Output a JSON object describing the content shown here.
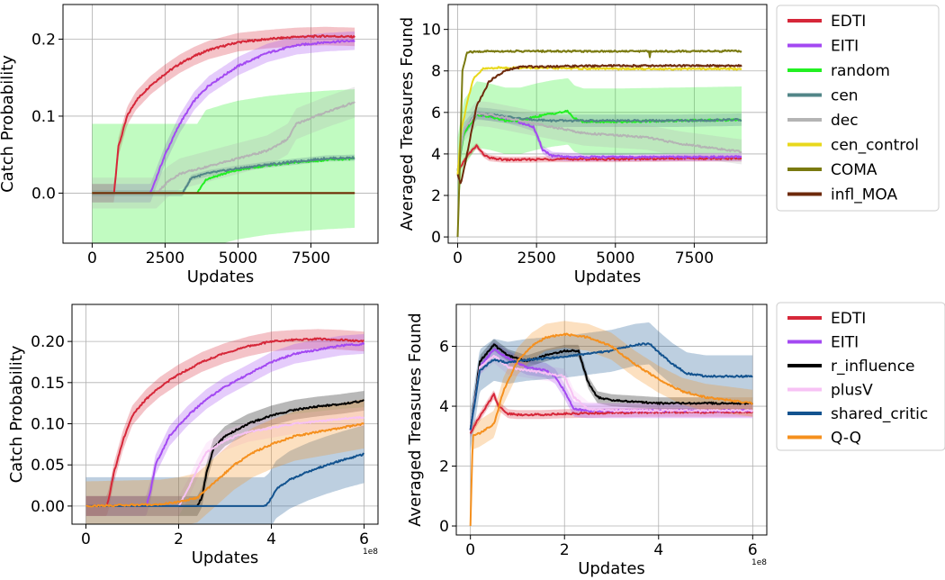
{
  "chart_data": [
    {
      "id": "top-left",
      "type": "line",
      "xlabel": "Updates",
      "ylabel": "Catch Probability",
      "xlim": [
        -1000,
        9800
      ],
      "ylim": [
        -0.065,
        0.245
      ],
      "xticks": [
        0,
        2500,
        5000,
        7500
      ],
      "xtick_labels": [
        "0",
        "2500",
        "5000",
        "7500"
      ],
      "yticks": [
        0.0,
        0.1,
        0.2
      ],
      "ytick_labels": [
        "0.0",
        "0.1",
        "0.2"
      ],
      "grid": true,
      "series": [
        {
          "name": "EDTI",
          "color": "#d62739",
          "x": [
            0,
            750,
            800,
            900,
            1200,
            1500,
            2000,
            2500,
            3000,
            3500,
            4000,
            5000,
            6000,
            7000,
            8000,
            9000
          ],
          "y": [
            0,
            0,
            0.02,
            0.06,
            0.1,
            0.12,
            0.14,
            0.155,
            0.168,
            0.178,
            0.186,
            0.196,
            0.2,
            0.203,
            0.204,
            0.203
          ],
          "band": 0.012
        },
        {
          "name": "EITI",
          "color": "#a349f2",
          "x": [
            0,
            2000,
            2200,
            2500,
            3000,
            3500,
            4000,
            5000,
            6000,
            7000,
            8000,
            9000
          ],
          "y": [
            0,
            0,
            0.02,
            0.05,
            0.09,
            0.12,
            0.14,
            0.165,
            0.182,
            0.192,
            0.196,
            0.198
          ],
          "band": 0.012
        },
        {
          "name": "random",
          "color": "#22f022",
          "x": [
            0,
            3600,
            3900,
            4500,
            5000,
            6000,
            7000,
            8000,
            9000
          ],
          "y": [
            0,
            0,
            0.018,
            0.025,
            0.03,
            0.036,
            0.04,
            0.043,
            0.045
          ],
          "band": 0.09
        },
        {
          "name": "cen",
          "color": "#528688",
          "x": [
            0,
            3100,
            3400,
            4000,
            5000,
            6000,
            7000,
            8000,
            9000
          ],
          "y": [
            0,
            0,
            0.02,
            0.026,
            0.032,
            0.037,
            0.041,
            0.045,
            0.046
          ],
          "band": 0.004
        },
        {
          "name": "dec",
          "color": "#b4b4b4",
          "x": [
            0,
            2200,
            2600,
            3000,
            4000,
            5000,
            6000,
            6700,
            7000,
            8000,
            9000
          ],
          "y": [
            0,
            0,
            0.015,
            0.025,
            0.035,
            0.045,
            0.055,
            0.07,
            0.09,
            0.105,
            0.118
          ],
          "band": 0.02
        },
        {
          "name": "cen_control",
          "color": "#e8d81c",
          "x": [
            0,
            9000
          ],
          "y": [
            0,
            0
          ],
          "band": 0
        },
        {
          "name": "COMA",
          "color": "#7a7a10",
          "x": [
            0,
            9000
          ],
          "y": [
            0,
            0
          ],
          "band": 0
        },
        {
          "name": "infl_MOA",
          "color": "#6e2a0c",
          "x": [
            0,
            9000
          ],
          "y": [
            0,
            0
          ],
          "band": 0
        }
      ]
    },
    {
      "id": "top-right",
      "type": "line",
      "xlabel": "Updates",
      "ylabel": "Averaged Treasures Found",
      "xlim": [
        -300,
        9800
      ],
      "ylim": [
        -0.3,
        11.2
      ],
      "xticks": [
        0,
        2500,
        5000,
        7500
      ],
      "xtick_labels": [
        "0",
        "2500",
        "5000",
        "7500"
      ],
      "yticks": [
        0,
        2,
        4,
        6,
        8,
        10
      ],
      "ytick_labels": [
        "0",
        "2",
        "4",
        "6",
        "8",
        "10"
      ],
      "grid": true,
      "legend": {
        "placement": "outside-right",
        "entries": [
          "EDTI",
          "EITI",
          "random",
          "cen",
          "dec",
          "cen_control",
          "COMA",
          "infl_MOA"
        ]
      },
      "series": [
        {
          "name": "EDTI",
          "color": "#d62739",
          "x": [
            0,
            100,
            300,
            600,
            800,
            1000,
            1500,
            2000,
            3000,
            5000,
            7000,
            9000
          ],
          "y": [
            3.0,
            3.4,
            3.9,
            4.4,
            4.0,
            3.8,
            3.72,
            3.72,
            3.75,
            3.75,
            3.78,
            3.78
          ],
          "band": 0.15
        },
        {
          "name": "EITI",
          "color": "#a349f2",
          "x": [
            0,
            200,
            600,
            1000,
            1500,
            2000,
            2400,
            2700,
            3000,
            3500,
            5000,
            9000
          ],
          "y": [
            3.2,
            5.0,
            5.9,
            5.8,
            5.7,
            5.5,
            5.3,
            4.2,
            3.9,
            3.85,
            3.85,
            3.85
          ],
          "band": 0.2
        },
        {
          "name": "random",
          "color": "#22f022",
          "x": [
            0,
            200,
            600,
            1000,
            1500,
            2000,
            2500,
            3000,
            3500,
            3700,
            4000,
            5000,
            7000,
            9000
          ],
          "y": [
            3.2,
            5.0,
            5.9,
            5.8,
            5.6,
            5.6,
            5.8,
            5.95,
            6.05,
            5.7,
            5.55,
            5.55,
            5.6,
            5.65
          ],
          "band": 1.6
        },
        {
          "name": "cen",
          "color": "#528688",
          "x": [
            0,
            200,
            600,
            1000,
            2000,
            3000,
            4000,
            5000,
            7000,
            9000
          ],
          "y": [
            3.2,
            5.2,
            5.95,
            5.9,
            5.7,
            5.6,
            5.6,
            5.6,
            5.6,
            5.65
          ],
          "band": 0.3
        },
        {
          "name": "dec",
          "color": "#b4b4b4",
          "x": [
            0,
            200,
            600,
            1000,
            2000,
            3000,
            4000,
            5000,
            6000,
            7000,
            9000
          ],
          "y": [
            3.2,
            5.2,
            5.95,
            5.9,
            5.6,
            5.3,
            5.0,
            4.9,
            4.8,
            4.5,
            4.1
          ],
          "band": 0.6
        },
        {
          "name": "cen_control",
          "color": "#e8d81c",
          "x": [
            0,
            100,
            300,
            500,
            800,
            1200,
            2000,
            5000,
            9000
          ],
          "y": [
            3.0,
            5.0,
            6.5,
            7.6,
            8.1,
            8.15,
            8.15,
            8.1,
            8.1
          ],
          "band": 0.05
        },
        {
          "name": "COMA",
          "color": "#7a7a10",
          "x": [
            0,
            60,
            150,
            300,
            1000,
            5000,
            6080,
            6100,
            6120,
            9000
          ],
          "y": [
            0.0,
            3.0,
            8.0,
            8.9,
            8.95,
            8.95,
            8.95,
            8.3,
            8.95,
            8.95
          ],
          "band": 0.05
        },
        {
          "name": "infl_MOA",
          "color": "#6e2a0c",
          "x": [
            0,
            100,
            300,
            600,
            1000,
            1500,
            2000,
            3000,
            5000,
            9000
          ],
          "y": [
            3.0,
            2.5,
            4.0,
            6.3,
            7.5,
            8.0,
            8.2,
            8.22,
            8.25,
            8.25
          ],
          "band": 0.05
        }
      ]
    },
    {
      "id": "bottom-left",
      "type": "line",
      "xlabel": "Updates",
      "ylabel": "Catch Probability",
      "offset_text": "1e8",
      "xlim": [
        -0.3,
        6.3
      ],
      "ylim": [
        -0.022,
        0.245
      ],
      "xticks": [
        0,
        2,
        4,
        6
      ],
      "xtick_labels": [
        "0",
        "2",
        "4",
        "6"
      ],
      "yticks": [
        0.0,
        0.05,
        0.1,
        0.15,
        0.2
      ],
      "ytick_labels": [
        "0.00",
        "0.05",
        "0.10",
        "0.15",
        "0.20"
      ],
      "grid": true,
      "series": [
        {
          "name": "EDTI",
          "color": "#d62739",
          "x": [
            0,
            0.45,
            0.5,
            0.6,
            0.8,
            1.0,
            1.3,
            1.6,
            2.0,
            2.5,
            3.0,
            3.5,
            4.0,
            4.5,
            5.0,
            5.5,
            6.0
          ],
          "y": [
            0,
            0,
            0.01,
            0.04,
            0.08,
            0.11,
            0.13,
            0.145,
            0.16,
            0.175,
            0.186,
            0.194,
            0.2,
            0.202,
            0.203,
            0.202,
            0.2
          ],
          "band": 0.012
        },
        {
          "name": "EITI",
          "color": "#a349f2",
          "x": [
            0,
            1.3,
            1.4,
            1.5,
            1.8,
            2.2,
            2.6,
            3.0,
            3.5,
            4.0,
            4.5,
            5.0,
            5.5,
            6.0
          ],
          "y": [
            0,
            0,
            0.02,
            0.05,
            0.085,
            0.11,
            0.13,
            0.145,
            0.16,
            0.175,
            0.185,
            0.19,
            0.195,
            0.197
          ],
          "band": 0.012
        },
        {
          "name": "r_influence",
          "color": "#000000",
          "x": [
            0,
            2.4,
            2.5,
            2.6,
            2.75,
            3.0,
            3.5,
            4.0,
            4.5,
            5.0,
            5.5,
            6.0
          ],
          "y": [
            0,
            0,
            0.01,
            0.04,
            0.07,
            0.085,
            0.1,
            0.11,
            0.117,
            0.121,
            0.124,
            0.128
          ],
          "band": 0.012
        },
        {
          "name": "plusV",
          "color": "#f7c2f4",
          "x": [
            0,
            2.0,
            2.2,
            2.4,
            2.6,
            3.0,
            3.5,
            4.0,
            4.5,
            5.0,
            5.5,
            6.0
          ],
          "y": [
            0,
            0,
            0.02,
            0.045,
            0.065,
            0.08,
            0.09,
            0.095,
            0.1,
            0.103,
            0.106,
            0.108
          ],
          "band": 0.012
        },
        {
          "name": "shared_critic",
          "color": "#13538f",
          "x": [
            0,
            3.85,
            3.95,
            4.1,
            4.4,
            4.8,
            5.2,
            5.6,
            6.0
          ],
          "y": [
            0,
            0,
            0.005,
            0.02,
            0.032,
            0.042,
            0.05,
            0.057,
            0.063
          ],
          "band": 0.035
        },
        {
          "name": "Q-Q",
          "color": "#f5901e",
          "x": [
            0,
            1.6,
            2.0,
            2.4,
            2.8,
            3.2,
            3.6,
            4.0,
            4.5,
            5.0,
            5.5,
            6.0
          ],
          "y": [
            0,
            0.002,
            0.005,
            0.01,
            0.03,
            0.05,
            0.065,
            0.075,
            0.085,
            0.09,
            0.095,
            0.1
          ],
          "band": 0.03
        }
      ]
    },
    {
      "id": "bottom-right",
      "type": "line",
      "xlabel": "Updates",
      "ylabel": "Averaged Treasures Found",
      "offset_text": "1e8",
      "xlim": [
        -0.3,
        6.3
      ],
      "ylim": [
        -0.3,
        7.4
      ],
      "xticks": [
        0,
        2,
        4,
        6
      ],
      "xtick_labels": [
        "0",
        "2",
        "4",
        "6"
      ],
      "yticks": [
        0,
        2,
        4,
        6
      ],
      "ytick_labels": [
        "0",
        "2",
        "4",
        "6"
      ],
      "grid": true,
      "legend": {
        "placement": "outside-right",
        "entries": [
          "EDTI",
          "EITI",
          "r_influence",
          "plusV",
          "shared_critic",
          "Q-Q"
        ]
      },
      "series": [
        {
          "name": "EDTI",
          "color": "#d62739",
          "x": [
            0,
            0.1,
            0.3,
            0.5,
            0.6,
            0.8,
            1.0,
            1.5,
            2.0,
            3.0,
            4.0,
            5.0,
            6.0
          ],
          "y": [
            3.1,
            3.4,
            3.9,
            4.4,
            4.0,
            3.75,
            3.72,
            3.72,
            3.75,
            3.78,
            3.8,
            3.8,
            3.8
          ],
          "band": 0.15
        },
        {
          "name": "EITI",
          "color": "#a349f2",
          "x": [
            0,
            0.2,
            0.5,
            0.8,
            1.2,
            1.6,
            1.8,
            2.0,
            2.2,
            2.5,
            3.0,
            4.0,
            5.0,
            6.0
          ],
          "y": [
            3.2,
            5.3,
            5.9,
            5.6,
            5.3,
            5.2,
            5.0,
            4.5,
            3.9,
            3.85,
            3.85,
            3.85,
            3.85,
            3.85
          ],
          "band": 0.25
        },
        {
          "name": "r_influence",
          "color": "#000000",
          "x": [
            0,
            0.2,
            0.5,
            0.8,
            1.2,
            1.6,
            2.0,
            2.3,
            2.5,
            2.7,
            3.0,
            4.0,
            5.0,
            6.0
          ],
          "y": [
            3.2,
            5.5,
            6.05,
            5.7,
            5.5,
            5.7,
            5.85,
            5.85,
            4.8,
            4.3,
            4.2,
            4.1,
            4.1,
            4.1
          ],
          "band": 0.2
        },
        {
          "name": "plusV",
          "color": "#f7c2f4",
          "x": [
            0,
            0.2,
            0.5,
            0.8,
            1.2,
            1.6,
            2.0,
            2.2,
            2.5,
            3.0,
            4.0,
            5.0,
            6.0
          ],
          "y": [
            3.2,
            5.3,
            5.7,
            5.3,
            5.2,
            5.1,
            5.0,
            4.3,
            3.9,
            3.85,
            3.85,
            3.85,
            3.85
          ],
          "band": 0.25
        },
        {
          "name": "shared_critic",
          "color": "#13538f",
          "x": [
            0,
            0.2,
            0.5,
            0.8,
            1.2,
            1.6,
            2.0,
            2.5,
            3.0,
            3.5,
            3.8,
            4.0,
            4.3,
            4.6,
            5.0,
            5.5,
            6.0
          ],
          "y": [
            3.2,
            5.2,
            5.55,
            5.45,
            5.55,
            5.6,
            5.65,
            5.75,
            5.85,
            6.05,
            6.1,
            5.8,
            5.4,
            5.1,
            5.0,
            5.0,
            5.0
          ],
          "band": 0.7
        },
        {
          "name": "Q-Q",
          "color": "#f5901e",
          "x": [
            0,
            0.05,
            0.2,
            0.5,
            0.7,
            1.0,
            1.3,
            1.6,
            2.0,
            2.5,
            3.0,
            3.5,
            4.0,
            4.5,
            5.0,
            5.5,
            6.0
          ],
          "y": [
            0,
            3.0,
            3.1,
            3.4,
            4.5,
            5.5,
            6.0,
            6.3,
            6.4,
            6.3,
            6.0,
            5.4,
            4.9,
            4.5,
            4.3,
            4.2,
            4.1
          ],
          "band": 0.45
        }
      ]
    }
  ]
}
